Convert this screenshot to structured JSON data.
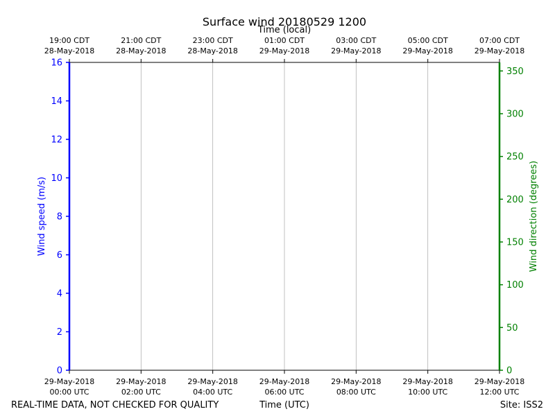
{
  "chart_data": {
    "type": "line",
    "title": "Surface wind 20180529 1200",
    "top_axis_label": "Time (local)",
    "xlabel": "Time (UTC)",
    "ylabel_left": "Wind speed (m/s)",
    "ylabel_right": "Wind direction (degrees)",
    "ylim_left": [
      0,
      16
    ],
    "ylim_right": [
      0,
      360
    ],
    "yticks_left": [
      0,
      2,
      4,
      6,
      8,
      10,
      12,
      14,
      16
    ],
    "yticks_right": [
      0,
      50,
      100,
      150,
      200,
      250,
      300,
      350
    ],
    "xlim": [
      "2018-05-29T00:00Z",
      "2018-05-29T12:00Z"
    ],
    "x_ticks": [
      {
        "t": "2018-05-29T00:00Z",
        "utc_date": "29-May-2018",
        "utc_time": "00:00 UTC",
        "local_time": "19:00 CDT",
        "local_date": "28-May-2018"
      },
      {
        "t": "2018-05-29T02:00Z",
        "utc_date": "29-May-2018",
        "utc_time": "02:00 UTC",
        "local_time": "21:00 CDT",
        "local_date": "28-May-2018"
      },
      {
        "t": "2018-05-29T04:00Z",
        "utc_date": "29-May-2018",
        "utc_time": "04:00 UTC",
        "local_time": "23:00 CDT",
        "local_date": "28-May-2018"
      },
      {
        "t": "2018-05-29T06:00Z",
        "utc_date": "29-May-2018",
        "utc_time": "06:00 UTC",
        "local_time": "01:00 CDT",
        "local_date": "29-May-2018"
      },
      {
        "t": "2018-05-29T08:00Z",
        "utc_date": "29-May-2018",
        "utc_time": "08:00 UTC",
        "local_time": "03:00 CDT",
        "local_date": "29-May-2018"
      },
      {
        "t": "2018-05-29T10:00Z",
        "utc_date": "29-May-2018",
        "utc_time": "10:00 UTC",
        "local_time": "05:00 CDT",
        "local_date": "29-May-2018"
      },
      {
        "t": "2018-05-29T12:00Z",
        "utc_date": "29-May-2018",
        "utc_time": "12:00 UTC",
        "local_time": "07:00 CDT",
        "local_date": "29-May-2018"
      }
    ],
    "series": [],
    "grid": "vertical",
    "colors": {
      "left_axis": "#0000ff",
      "right_axis": "#008000",
      "grid": "#b0b0b0",
      "frame": "#000000"
    }
  },
  "footer": {
    "disclaimer": "REAL-TIME DATA, NOT CHECKED FOR QUALITY",
    "site": "Site: ISS2"
  }
}
